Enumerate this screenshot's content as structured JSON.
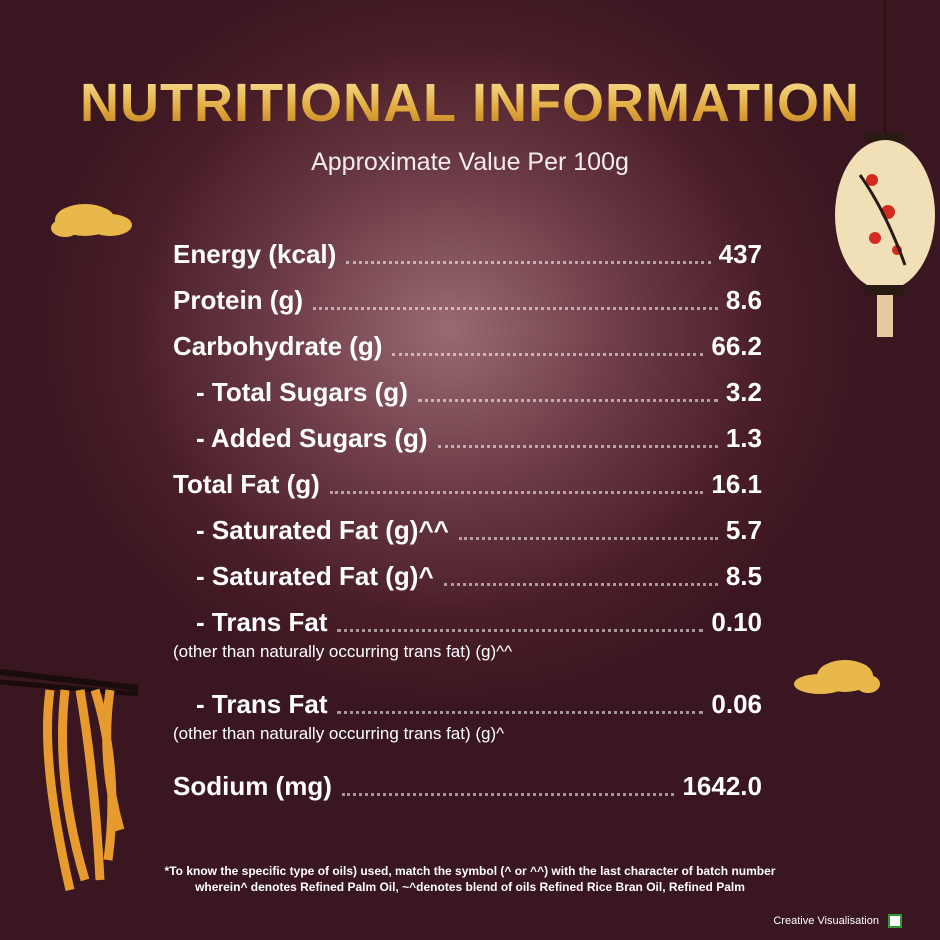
{
  "header": {
    "title": "NUTRITIONAL INFORMATION",
    "subtitle": "Approximate Value Per 100g"
  },
  "rows": [
    {
      "label": "Energy (kcal)",
      "value": "437",
      "indent": false
    },
    {
      "label": "Protein (g)",
      "value": "8.6",
      "indent": false
    },
    {
      "label": "Carbohydrate (g)",
      "value": "66.2",
      "indent": false
    },
    {
      "label": "- Total Sugars (g)",
      "value": "3.2",
      "indent": true
    },
    {
      "label": "- Added Sugars (g)",
      "value": "1.3",
      "indent": true
    },
    {
      "label": "Total Fat (g)",
      "value": "16.1",
      "indent": false
    },
    {
      "label": "- Saturated Fat (g)^^",
      "value": "5.7",
      "indent": true
    },
    {
      "label": "- Saturated Fat (g)^",
      "value": "8.5",
      "indent": true
    },
    {
      "label": "- Trans Fat",
      "value": "0.10",
      "indent": true,
      "note": "(other than naturally occurring trans fat) (g)^^"
    },
    {
      "label": "- Trans Fat",
      "value": "0.06",
      "indent": true,
      "note": "(other than naturally occurring trans fat) (g)^"
    },
    {
      "label": "Sodium (mg)",
      "value": "1642.0",
      "indent": false
    }
  ],
  "footnote": [
    "*To know the specific type of oils) used, match the symbol (^ or ^^) with the last character of batch number",
    "wherein^ denotes Refined Palm Oil, ~^denotes blend of oils Refined Rice Bran Oil, Refined Palm"
  ],
  "badge": "Creative Visualisation"
}
